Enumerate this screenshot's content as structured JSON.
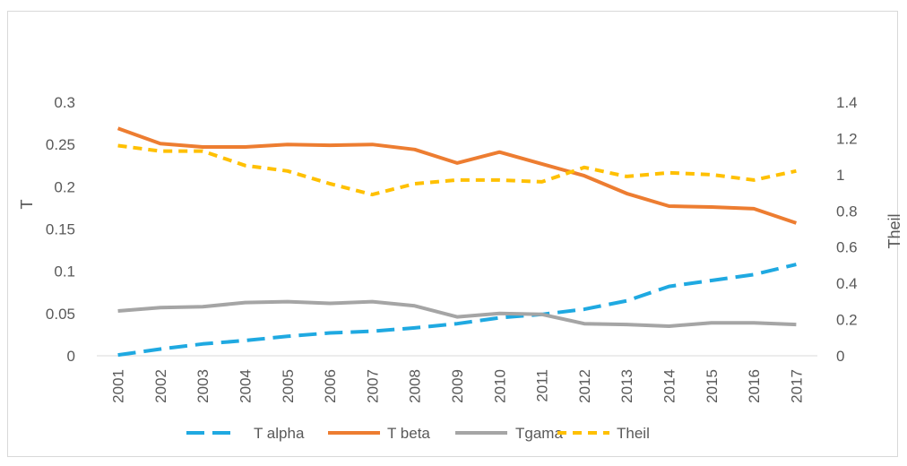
{
  "chart_data": {
    "type": "line",
    "title": "",
    "categories": [
      "2001",
      "2002",
      "2003",
      "2004",
      "2005",
      "2006",
      "2007",
      "2008",
      "2009",
      "2010",
      "2011",
      "2012",
      "2013",
      "2014",
      "2015",
      "2016",
      "2017"
    ],
    "ylabel": "T",
    "y2label": "Theil",
    "ylim": [
      0,
      0.3
    ],
    "y2lim": [
      0,
      1.4
    ],
    "yticks": [
      "0",
      "0.05",
      "0.1",
      "0.15",
      "0.2",
      "0.25",
      "0.3"
    ],
    "y2ticks": [
      "0",
      "0.2",
      "0.4",
      "0.6",
      "0.8",
      "1",
      "1.2",
      "1.4"
    ],
    "grid": false,
    "legend_position": "bottom",
    "series": [
      {
        "name": "T alpha",
        "axis": "left",
        "color": "#1fa9e1",
        "dash": "dashed-long",
        "values": [
          0.001,
          0.008,
          0.014,
          0.018,
          0.023,
          0.027,
          0.029,
          0.033,
          0.038,
          0.045,
          0.049,
          0.055,
          0.065,
          0.082,
          0.089,
          0.096,
          0.108
        ]
      },
      {
        "name": "T beta",
        "axis": "left",
        "color": "#ed7d31",
        "dash": "solid",
        "values": [
          0.269,
          0.251,
          0.247,
          0.247,
          0.25,
          0.249,
          0.25,
          0.244,
          0.228,
          0.241,
          0.227,
          0.213,
          0.192,
          0.177,
          0.176,
          0.174,
          0.157
        ]
      },
      {
        "name": "Tgama",
        "axis": "left",
        "color": "#a5a5a5",
        "dash": "solid",
        "values": [
          0.053,
          0.057,
          0.058,
          0.063,
          0.064,
          0.062,
          0.064,
          0.059,
          0.046,
          0.05,
          0.049,
          0.038,
          0.037,
          0.035,
          0.039,
          0.039,
          0.037
        ]
      },
      {
        "name": "Theil",
        "axis": "right",
        "color": "#ffc000",
        "dash": "dashed",
        "values": [
          1.16,
          1.13,
          1.13,
          1.05,
          1.02,
          0.95,
          0.89,
          0.95,
          0.97,
          0.97,
          0.96,
          1.04,
          0.99,
          1.01,
          1.0,
          0.97,
          1.02
        ]
      }
    ]
  }
}
